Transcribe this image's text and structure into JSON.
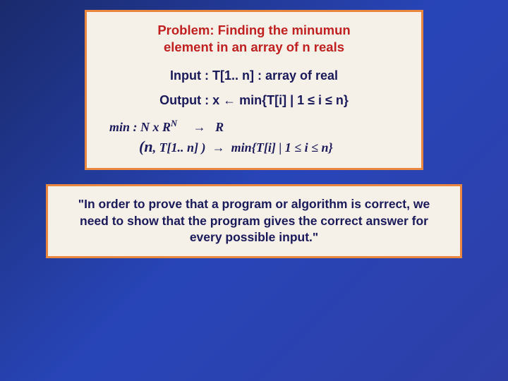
{
  "slide": {
    "background_gradient": [
      "#1a2a6c",
      "#2845b8",
      "#2e3fa8"
    ],
    "box_border_color": "#e8873d",
    "box_bg_color": "#f5f0e8",
    "title_color": "#c02020",
    "text_color": "#1a1a5a",
    "top_box": {
      "title_line1": "Problem: Finding the minumun",
      "title_line2": "element in an array of n reals",
      "input_line": "Input : T[1.. n] : array of real",
      "output_line": "Output : x ← min{T[i] | 1 ≤ i ≤ n}",
      "spec1_left": "min : N x R",
      "spec1_sup": "N",
      "spec1_right": "R",
      "spec2_left": "(n",
      "spec2_mid": ", T[1.. n] )",
      "spec2_right": "min{T[i] | 1 ≤ i ≤ n}"
    },
    "bottom_box": {
      "quote": "\"In order to prove that a program or algorithm is correct, we need to show that the program gives the correct answer for every possible input.\""
    }
  },
  "typography": {
    "title_fontsize": 18.5,
    "io_fontsize": 18,
    "spec_fontsize": 18,
    "quote_fontsize": 17.5,
    "font_family_body": "Comic Sans MS, Trebuchet MS, sans-serif",
    "font_family_spec": "Georgia, Times New Roman, serif"
  }
}
